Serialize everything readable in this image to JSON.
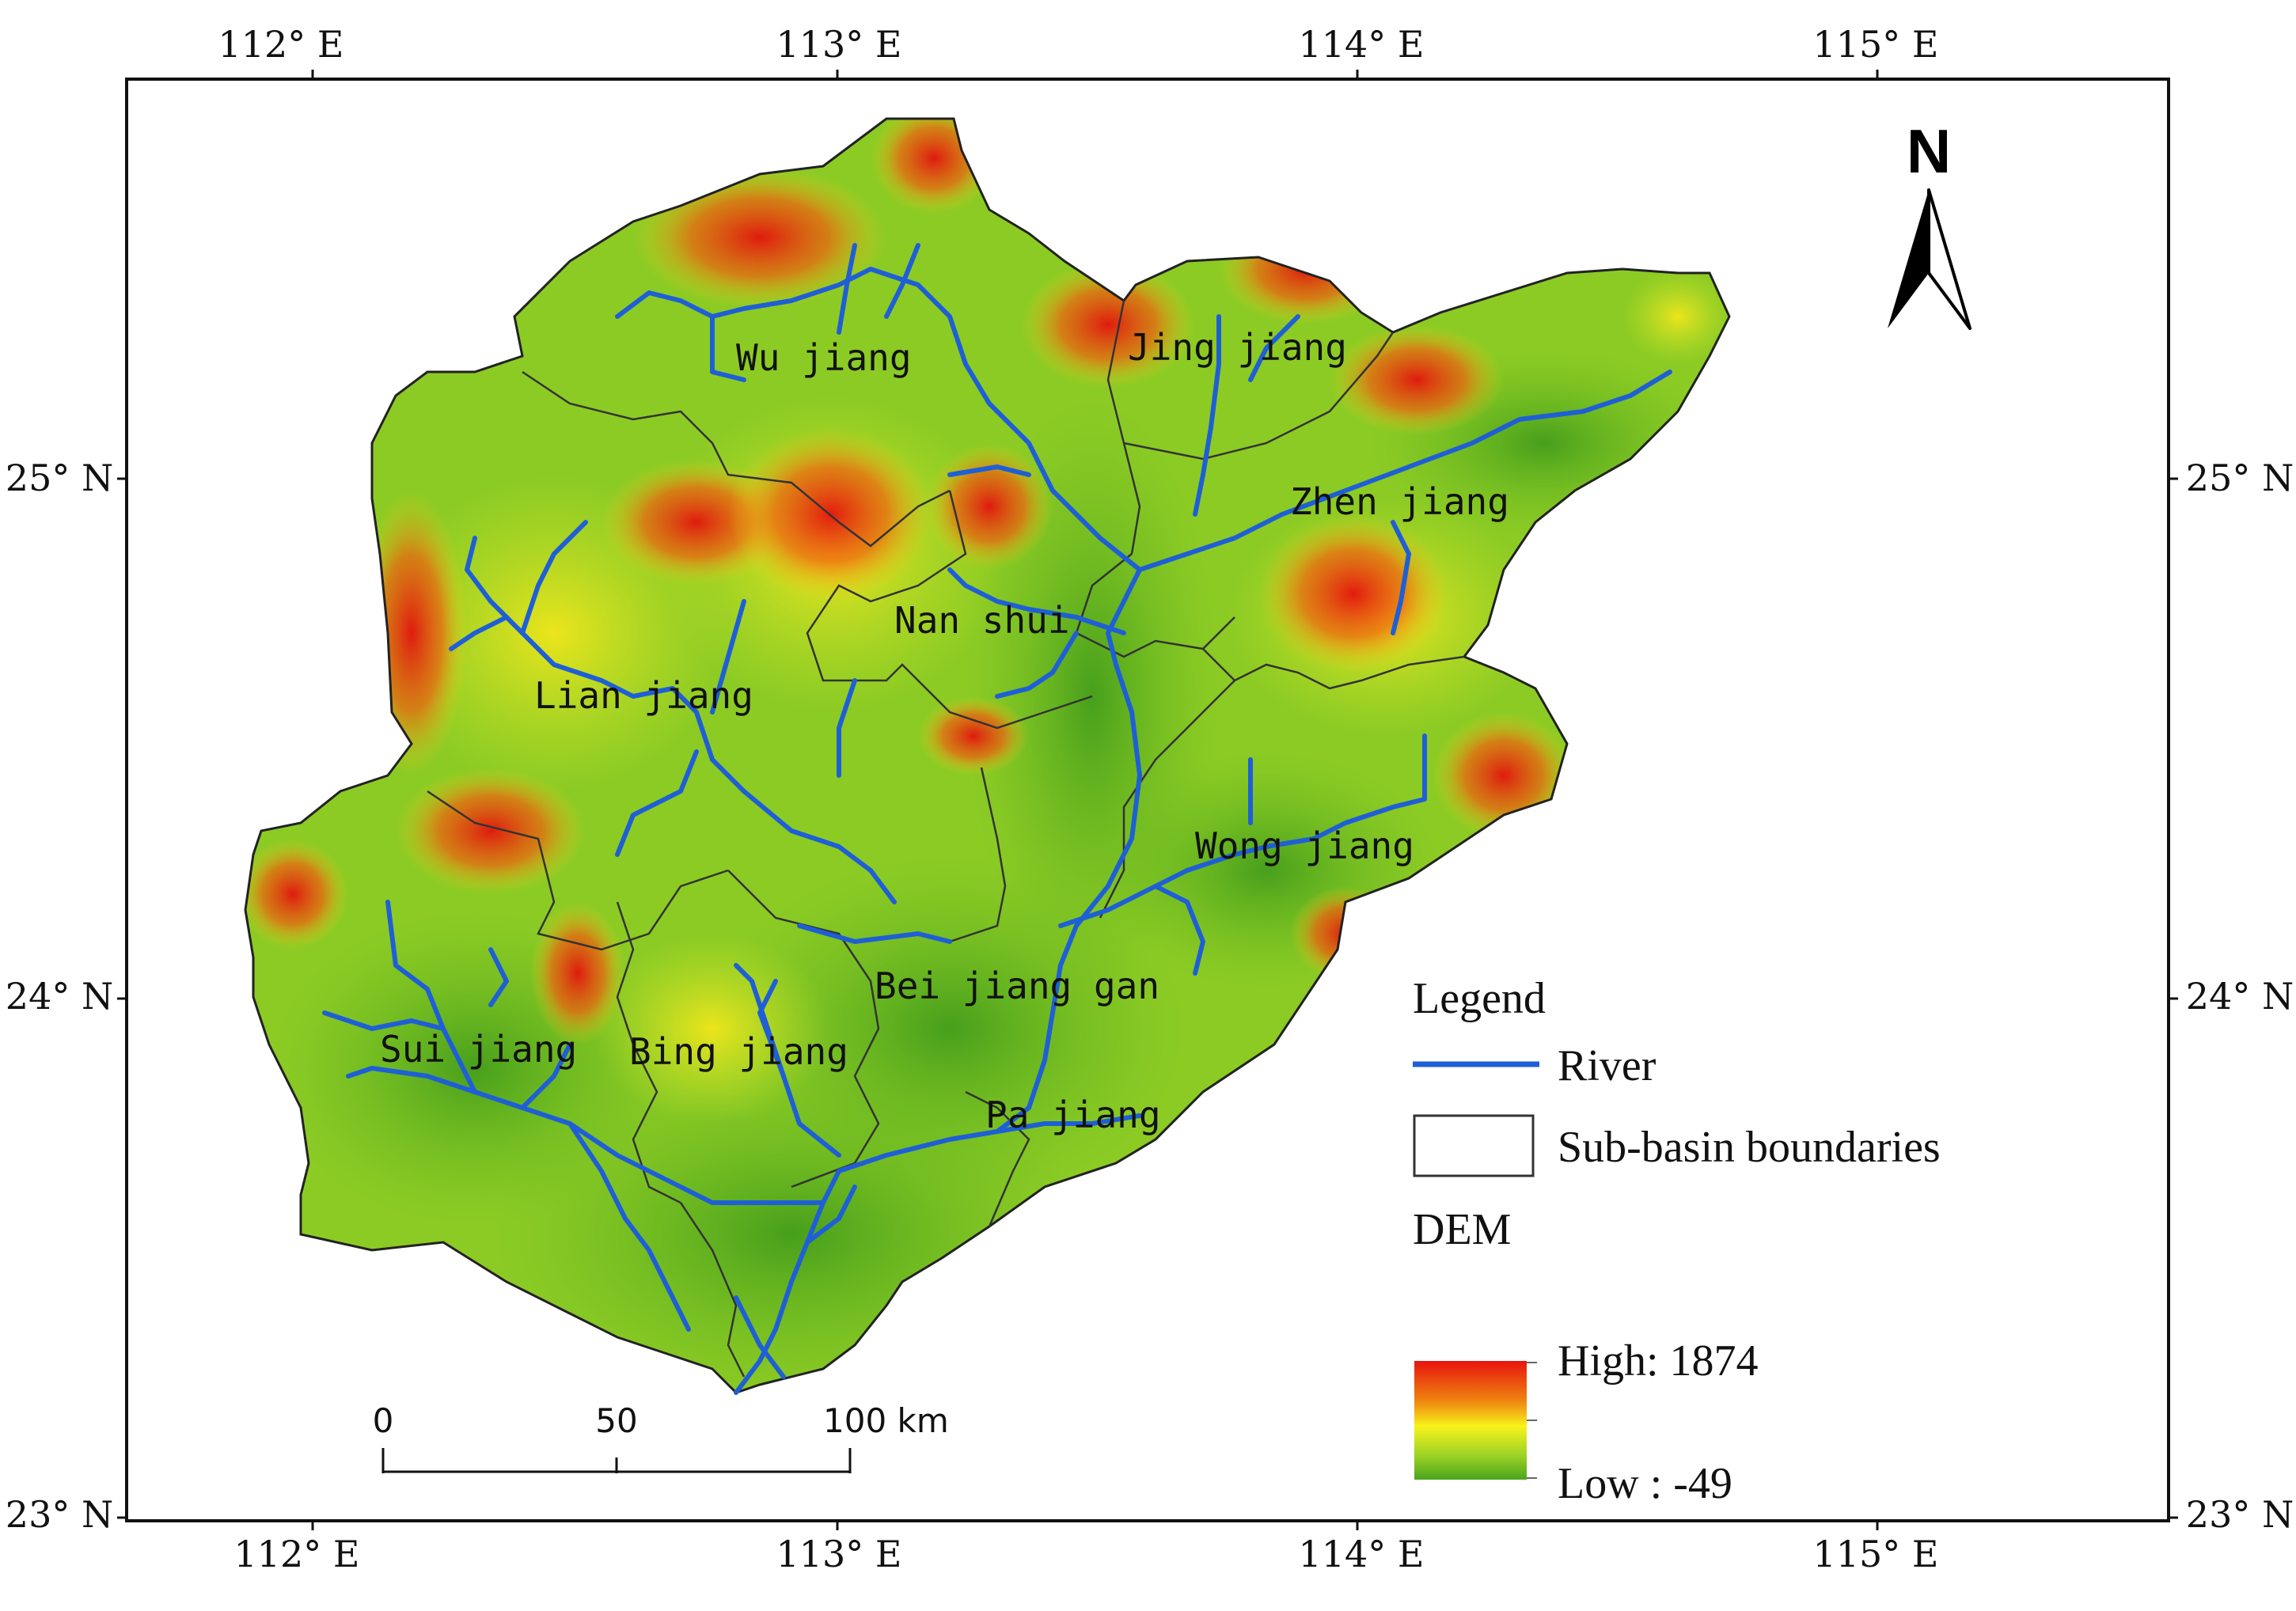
{
  "axes": {
    "x_labels": [
      "112° E",
      "113° E",
      "114° E",
      "115° E"
    ],
    "y_labels": [
      "25° N",
      "24° N",
      "23° N"
    ]
  },
  "north_arrow": {
    "label": "N"
  },
  "basins": [
    {
      "key": "wu",
      "name": "Wu jiang"
    },
    {
      "key": "jing",
      "name": "Jing jiang"
    },
    {
      "key": "zhen",
      "name": "Zhen jiang"
    },
    {
      "key": "nan",
      "name": "Nan shui"
    },
    {
      "key": "lian",
      "name": "Lian jiang"
    },
    {
      "key": "wong",
      "name": "Wong jiang"
    },
    {
      "key": "beijiang",
      "name": "Bei jiang gan"
    },
    {
      "key": "sui",
      "name": "Sui jiang"
    },
    {
      "key": "bing",
      "name": "Bing jiang"
    },
    {
      "key": "pa",
      "name": "Pa jiang"
    }
  ],
  "legend": {
    "title": "Legend",
    "river_label": "River",
    "boundary_label": "Sub-basin boundaries",
    "dem_title": "DEM",
    "high_label": "High: 1874",
    "low_label": "Low : -49"
  },
  "scale_bar": {
    "labels": [
      "0",
      "50",
      "100 km"
    ]
  },
  "colors": {
    "river": "#1f5fd6",
    "dem_high": "#e8140f",
    "dem_mid": "#f7f31a",
    "dem_low": "#4aa41e",
    "boundary": "#333333"
  }
}
